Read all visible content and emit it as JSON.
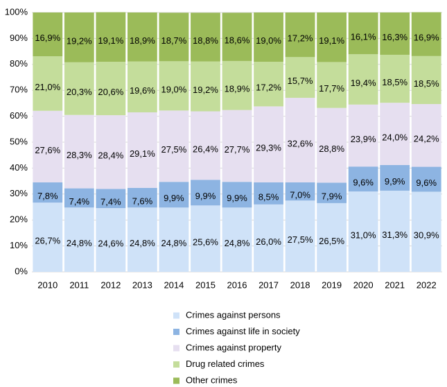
{
  "chart_data": {
    "type": "stacked_bar",
    "categories": [
      "2010",
      "2011",
      "2012",
      "2013",
      "2014",
      "2015",
      "2016",
      "2017",
      "2018",
      "2019",
      "2020",
      "2021",
      "2022"
    ],
    "series": [
      {
        "name": "Crimes against persons",
        "color": "#cfe2f8",
        "values": [
          26.7,
          24.8,
          24.6,
          24.8,
          24.8,
          25.6,
          24.8,
          26.0,
          27.5,
          26.5,
          31.0,
          31.3,
          30.9
        ],
        "value_labels": [
          "26,7%",
          "24,8%",
          "24,6%",
          "24,8%",
          "24,8%",
          "25,6%",
          "24,8%",
          "26,0%",
          "27,5%",
          "26,5%",
          "31,0%",
          "31,3%",
          "30,9%"
        ]
      },
      {
        "name": "Crimes against life in society",
        "color": "#8db4e2",
        "values": [
          7.8,
          7.4,
          7.4,
          7.6,
          9.9,
          9.9,
          9.9,
          8.5,
          7.0,
          7.9,
          9.6,
          9.9,
          9.6
        ],
        "value_labels": [
          "7,8%",
          "7,4%",
          "7,4%",
          "7,6%",
          "9,9%",
          "9,9%",
          "9,9%",
          "8,5%",
          "7,0%",
          "7,9%",
          "9,6%",
          "9,9%",
          "9,6%"
        ]
      },
      {
        "name": "Crimes against property",
        "color": "#e6dff0",
        "values": [
          27.6,
          28.3,
          28.4,
          29.1,
          27.5,
          26.4,
          27.7,
          29.3,
          32.6,
          28.8,
          23.9,
          24.0,
          24.2
        ],
        "value_labels": [
          "27,6%",
          "28,3%",
          "28,4%",
          "29,1%",
          "27,5%",
          "26,4%",
          "27,7%",
          "29,3%",
          "32,6%",
          "28,8%",
          "23,9%",
          "24,0%",
          "24,2%"
        ]
      },
      {
        "name": "Drug related crimes",
        "color": "#c4dd9b",
        "values": [
          21.0,
          20.3,
          20.6,
          19.6,
          19.0,
          19.2,
          18.9,
          17.2,
          15.7,
          17.7,
          19.4,
          18.5,
          18.5
        ],
        "value_labels": [
          "21,0%",
          "20,3%",
          "20,6%",
          "19,6%",
          "19,0%",
          "19,2%",
          "18,9%",
          "17,2%",
          "15,7%",
          "17,7%",
          "19,4%",
          "18,5%",
          "18,5%"
        ]
      },
      {
        "name": "Other crimes",
        "color": "#9bbb59",
        "values": [
          16.9,
          19.2,
          19.1,
          18.9,
          18.7,
          18.8,
          18.6,
          19.0,
          17.2,
          19.1,
          16.1,
          16.3,
          16.9
        ],
        "value_labels": [
          "16,9%",
          "19,2%",
          "19,1%",
          "18,9%",
          "18,7%",
          "18,8%",
          "18,6%",
          "19,0%",
          "17,2%",
          "19,1%",
          "16,1%",
          "16,3%",
          "16,9%"
        ]
      }
    ],
    "ylim": [
      0,
      100
    ],
    "yticks": [
      {
        "value": 0,
        "label": "0%"
      },
      {
        "value": 10,
        "label": "10%"
      },
      {
        "value": 20,
        "label": "20%"
      },
      {
        "value": 30,
        "label": "30%"
      },
      {
        "value": 40,
        "label": "40%"
      },
      {
        "value": 50,
        "label": "50%"
      },
      {
        "value": 60,
        "label": "60%"
      },
      {
        "value": 70,
        "label": "70%"
      },
      {
        "value": 80,
        "label": "80%"
      },
      {
        "value": 90,
        "label": "90%"
      },
      {
        "value": 100,
        "label": "100%"
      }
    ],
    "grid": true,
    "legend": "bottom"
  }
}
